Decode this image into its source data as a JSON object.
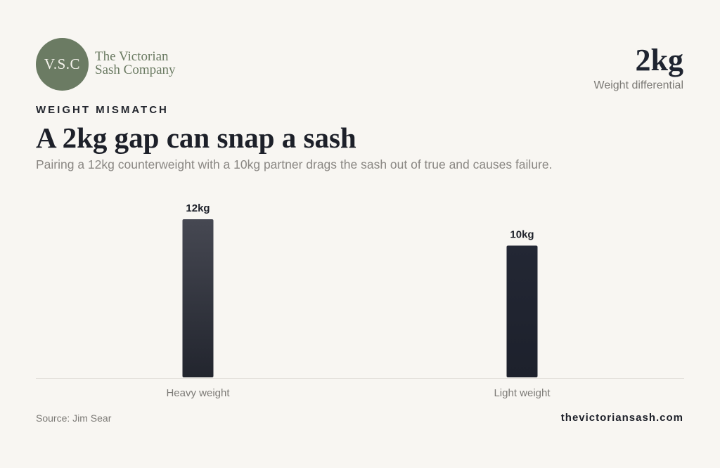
{
  "brand": {
    "monogram": "V.S.C",
    "name_line1": "The Victorian",
    "name_line2": "Sash Company"
  },
  "kpi": {
    "value": "2kg",
    "label": "Weight differential"
  },
  "header": {
    "eyebrow": "WEIGHT MISMATCH",
    "title": "A 2kg gap can snap a sash",
    "subtitle": "Pairing a 12kg counterweight with a 10kg partner drags the sash out of true and causes failure."
  },
  "chart_data": {
    "type": "bar",
    "categories": [
      "Heavy weight",
      "Light weight"
    ],
    "values": [
      12,
      10
    ],
    "data_labels": [
      "12kg",
      "10kg"
    ],
    "unit": "kg",
    "ylim": [
      0,
      12
    ],
    "grid": false,
    "legend": "none",
    "colors": [
      "#3d3f48",
      "#1f2330"
    ]
  },
  "footer": {
    "source": "Source: Jim Sear",
    "site": "thevictoriansash.com"
  },
  "colors": {
    "background": "#f8f6f2",
    "accent": "#6b7b63",
    "text_dark": "#1d2029",
    "text_muted": "#8a8783"
  }
}
